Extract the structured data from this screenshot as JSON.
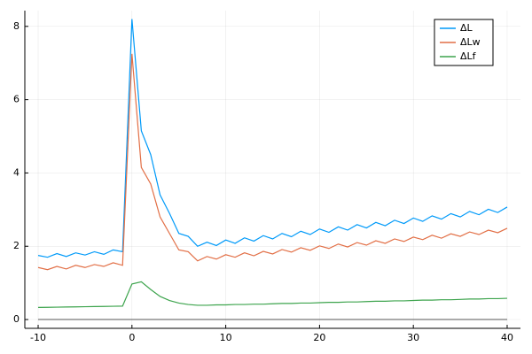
{
  "chart_data": {
    "type": "line",
    "x": [
      -10,
      -9,
      -8,
      -7,
      -6,
      -5,
      -4,
      -3,
      -2,
      -1,
      0,
      1,
      2,
      3,
      4,
      5,
      6,
      7,
      8,
      9,
      10,
      11,
      12,
      13,
      14,
      15,
      16,
      17,
      18,
      19,
      20,
      21,
      22,
      23,
      24,
      25,
      26,
      27,
      28,
      29,
      30,
      31,
      32,
      33,
      34,
      35,
      36,
      37,
      38,
      39,
      40
    ],
    "series": [
      {
        "name": "ΔL",
        "color": "#009af9",
        "values": [
          1.75,
          1.7,
          1.8,
          1.72,
          1.82,
          1.76,
          1.85,
          1.78,
          1.9,
          1.85,
          8.2,
          5.15,
          4.5,
          3.4,
          2.9,
          2.35,
          2.27,
          2.0,
          2.11,
          2.02,
          2.17,
          2.08,
          2.23,
          2.14,
          2.29,
          2.2,
          2.35,
          2.26,
          2.41,
          2.32,
          2.47,
          2.38,
          2.53,
          2.44,
          2.59,
          2.5,
          2.65,
          2.56,
          2.71,
          2.62,
          2.77,
          2.68,
          2.83,
          2.74,
          2.89,
          2.8,
          2.95,
          2.86,
          3.01,
          2.92,
          3.07
        ]
      },
      {
        "name": "ΔLw",
        "color": "#e26f46",
        "values": [
          1.42,
          1.36,
          1.45,
          1.38,
          1.48,
          1.42,
          1.5,
          1.45,
          1.55,
          1.48,
          7.25,
          4.15,
          3.7,
          2.8,
          2.35,
          1.9,
          1.85,
          1.6,
          1.72,
          1.65,
          1.77,
          1.7,
          1.82,
          1.74,
          1.86,
          1.79,
          1.91,
          1.84,
          1.96,
          1.89,
          2.01,
          1.94,
          2.06,
          1.98,
          2.1,
          2.03,
          2.15,
          2.08,
          2.2,
          2.13,
          2.25,
          2.18,
          2.3,
          2.22,
          2.34,
          2.27,
          2.39,
          2.32,
          2.44,
          2.37,
          2.49
        ]
      },
      {
        "name": "ΔLf",
        "color": "#3da44d",
        "values": [
          0.33,
          0.334,
          0.338,
          0.342,
          0.346,
          0.35,
          0.354,
          0.358,
          0.362,
          0.366,
          0.97,
          1.03,
          0.82,
          0.63,
          0.52,
          0.45,
          0.41,
          0.39,
          0.39,
          0.4,
          0.4,
          0.41,
          0.41,
          0.42,
          0.42,
          0.43,
          0.44,
          0.44,
          0.45,
          0.45,
          0.46,
          0.47,
          0.47,
          0.48,
          0.48,
          0.49,
          0.5,
          0.5,
          0.51,
          0.51,
          0.52,
          0.53,
          0.53,
          0.54,
          0.54,
          0.55,
          0.56,
          0.56,
          0.57,
          0.57,
          0.58
        ]
      }
    ],
    "hlines": [
      0
    ],
    "hline_color": "#555555",
    "xlim": [
      -11.42,
      41.42
    ],
    "xticks": [
      -10,
      0,
      10,
      20,
      30,
      40
    ],
    "ylim": [
      -0.24,
      8.43
    ],
    "yticks": [
      0,
      2,
      4,
      6,
      8
    ],
    "grid": true,
    "legend": "top-right"
  }
}
